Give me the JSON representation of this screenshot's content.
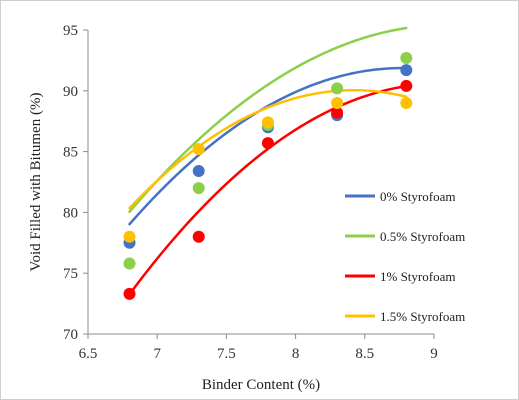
{
  "chart_data": {
    "type": "scatter",
    "xlabel": "Binder Content (%)",
    "ylabel": "Void Filled with Bitumen (%)",
    "xlim": [
      6.5,
      9
    ],
    "ylim": [
      70,
      95
    ],
    "xticks": [
      "6.5",
      "7",
      "7.5",
      "8",
      "8.5",
      "9"
    ],
    "yticks": [
      "70",
      "75",
      "80",
      "85",
      "90",
      "95"
    ],
    "grid": false,
    "legend_position": "right",
    "trendline": "polynomial",
    "series": [
      {
        "name": "0% Styrofoam",
        "color": "#4472c4",
        "x": [
          6.8,
          7.3,
          7.8,
          8.3,
          8.8
        ],
        "y": [
          77.5,
          83.4,
          87.0,
          88.0,
          91.7
        ],
        "trend_coefficients": [
          -3.3,
          57.9,
          -162.1
        ]
      },
      {
        "name": "0.5% Styrofoam",
        "color": "#8ccf4a",
        "x": [
          6.8,
          7.3,
          7.8,
          8.3,
          8.8
        ],
        "y": [
          75.8,
          82.0,
          87.2,
          90.2,
          92.7
        ],
        "trend_coefficients": [
          -2.9,
          52.8,
          -144.9
        ]
      },
      {
        "name": "1% Styrofoam",
        "color": "#ff0000",
        "x": [
          6.8,
          7.3,
          7.8,
          8.3,
          8.8
        ],
        "y": [
          73.3,
          78.0,
          85.7,
          88.2,
          90.4
        ],
        "trend_coefficients": [
          -3.4,
          61.6,
          -188.4
        ]
      },
      {
        "name": "1.5% Styrofoam",
        "color": "#ffc000",
        "x": [
          6.8,
          7.3,
          7.8,
          8.3,
          8.8
        ],
        "y": [
          78.0,
          85.2,
          87.4,
          89.0,
          89.0
        ],
        "trend_coefficients": [
          -3.7,
          62.3,
          -172.2
        ]
      }
    ]
  }
}
